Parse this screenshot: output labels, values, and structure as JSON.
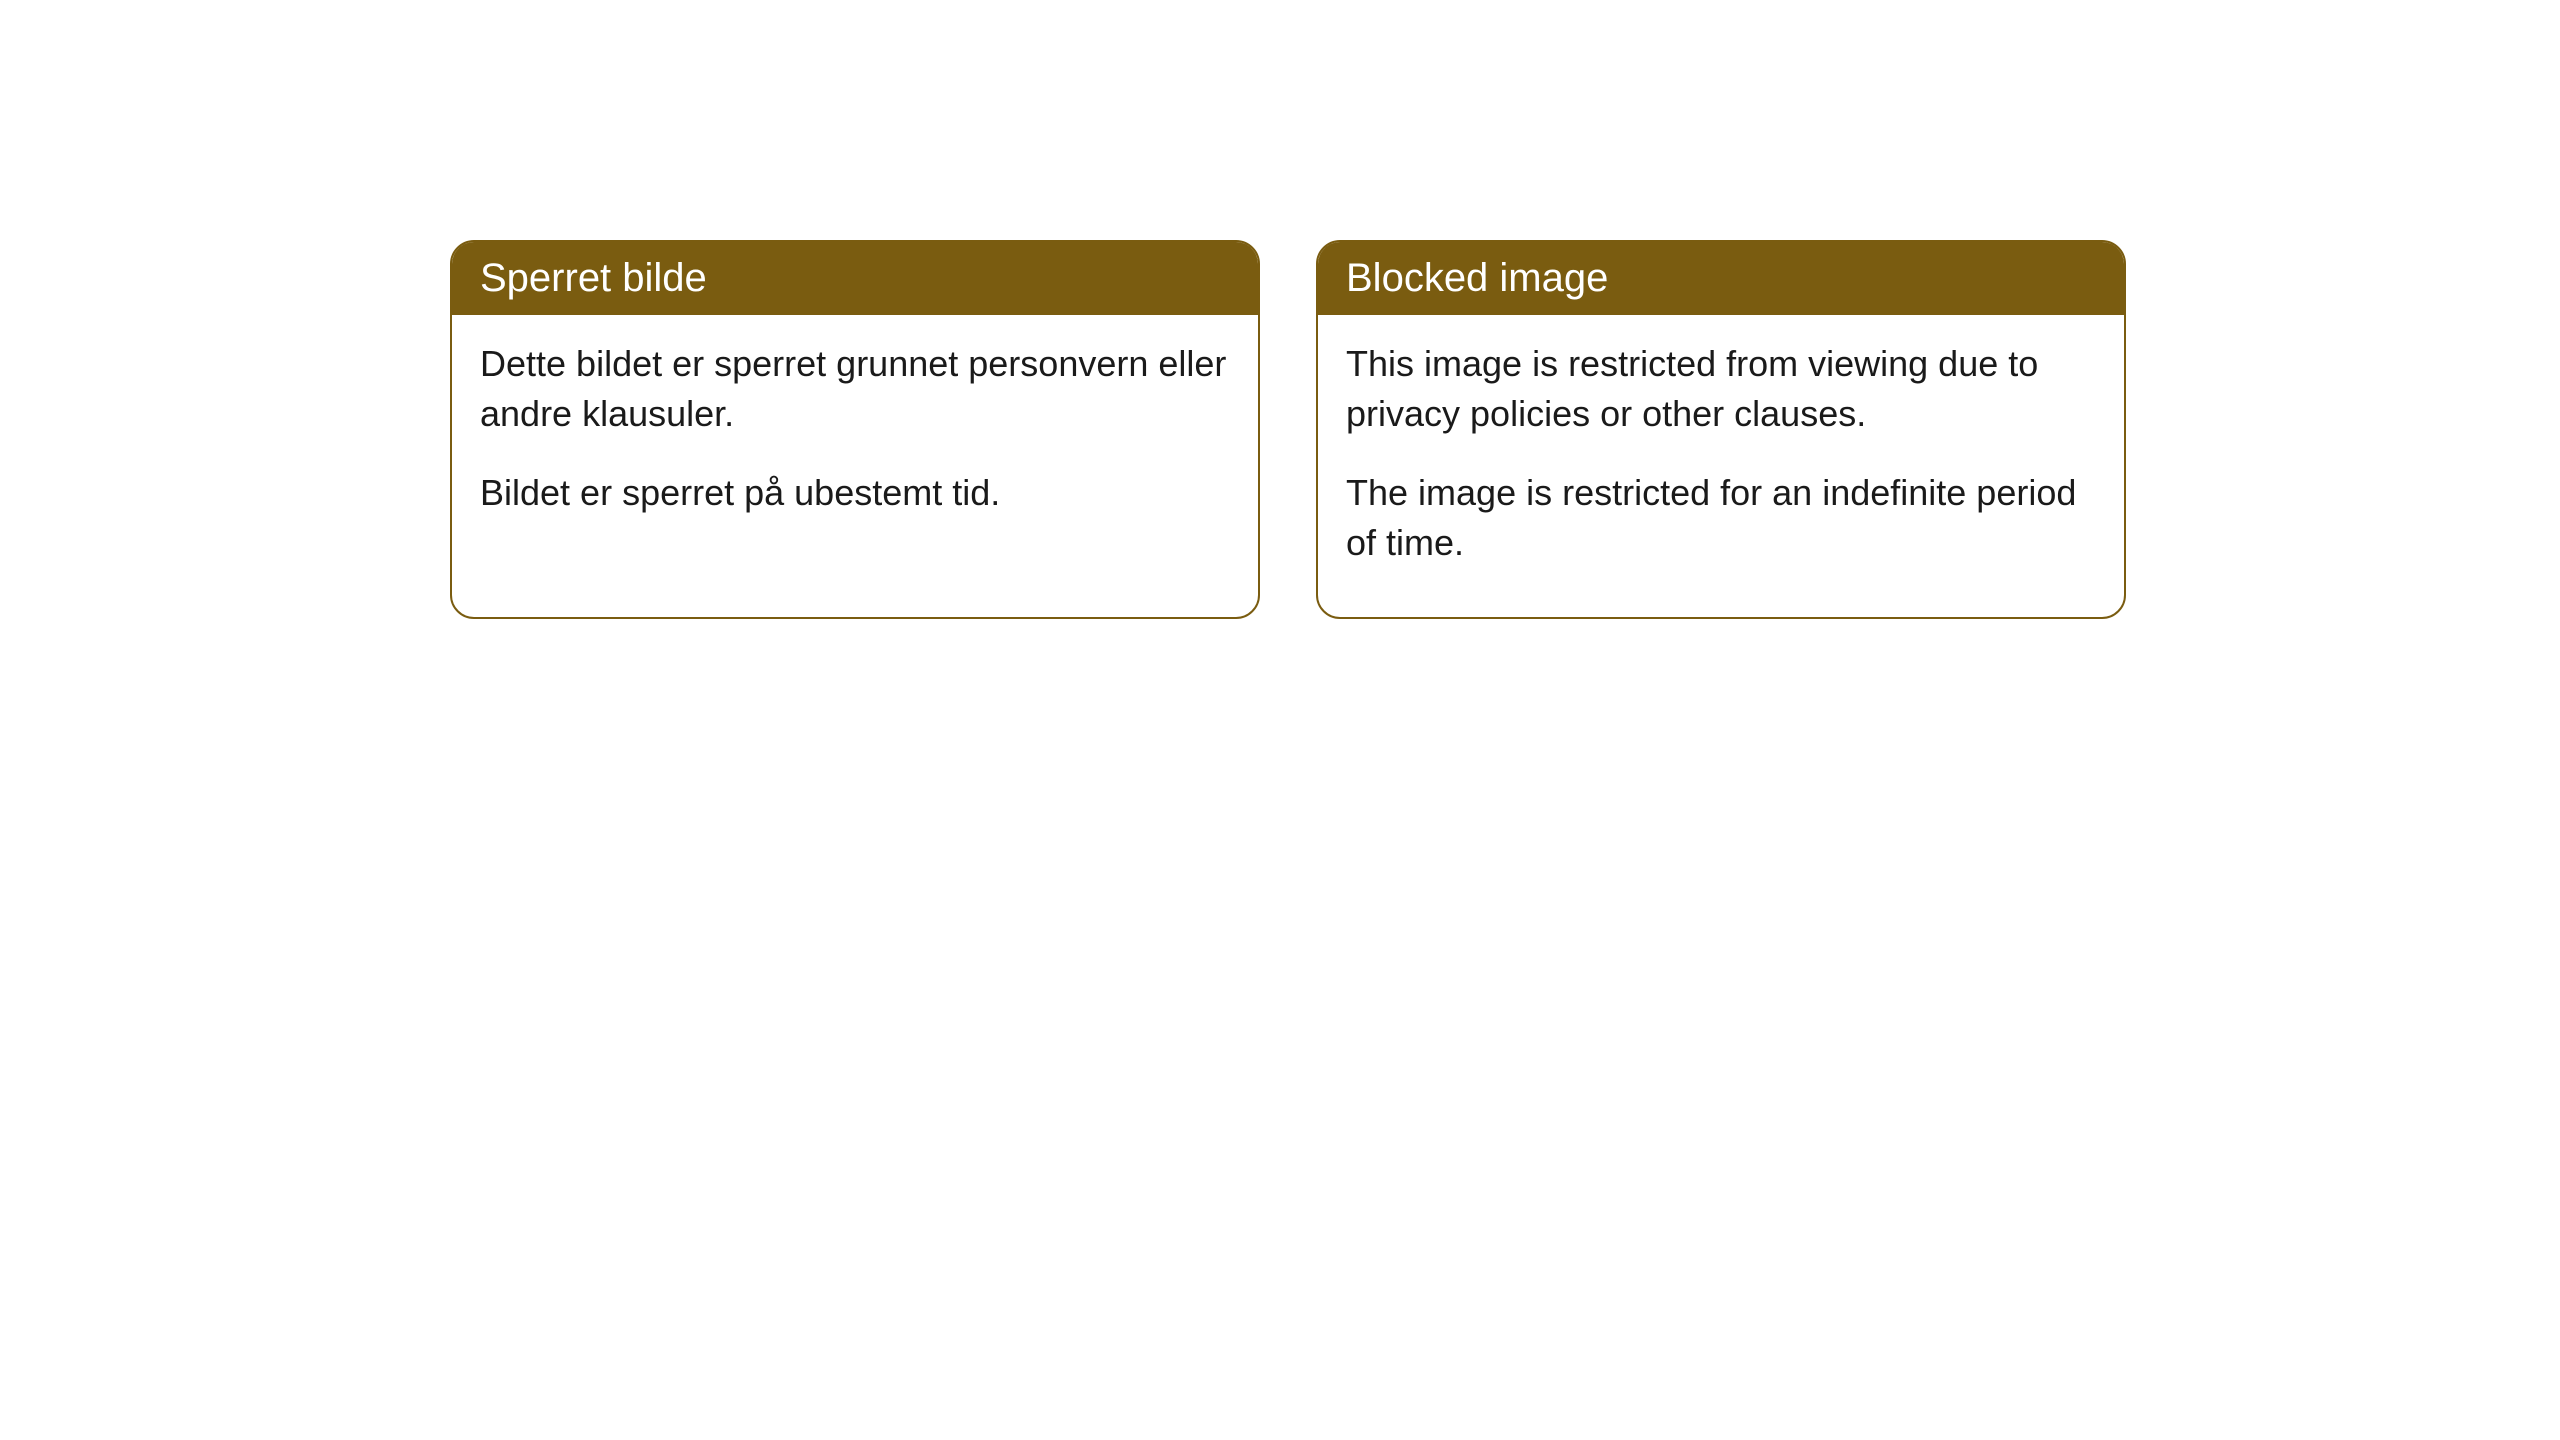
{
  "cards": [
    {
      "title": "Sperret bilde",
      "paragraph1": "Dette bildet er sperret grunnet personvern eller andre klausuler.",
      "paragraph2": "Bildet er sperret på ubestemt tid."
    },
    {
      "title": "Blocked image",
      "paragraph1": "This image is restricted from viewing due to privacy policies or other clauses.",
      "paragraph2": "The image is restricted for an indefinite period of time."
    }
  ],
  "styling": {
    "header_bg_color": "#7a5c10",
    "header_text_color": "#ffffff",
    "border_color": "#7a5c10",
    "border_radius": "24px",
    "body_text_color": "#1a1a1a",
    "background_color": "#ffffff",
    "title_fontsize": 40,
    "body_fontsize": 36
  }
}
